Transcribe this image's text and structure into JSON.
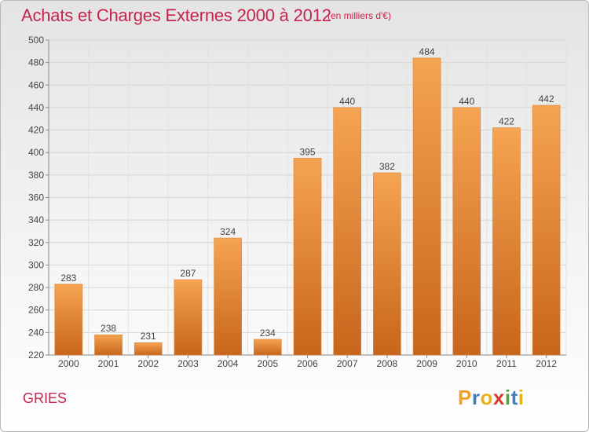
{
  "title": "Achats et Charges Externes 2000 à 2012",
  "subtitle": "(en milliers d'€)",
  "commune": "GRIES",
  "logo": {
    "letters": [
      "P",
      "r",
      "o",
      "x",
      "i",
      "t",
      "i"
    ],
    "colors": [
      "#f0a02a",
      "#3d7fbf",
      "#e8b219",
      "#d53a2c",
      "#4aa73d",
      "#3d7fbf",
      "#e8b219"
    ],
    "text": "Proxiti"
  },
  "colors": {
    "bar_top": "#f5a452",
    "bar_bottom": "#c8651b",
    "title": "#c8234f"
  },
  "chart_data": {
    "type": "bar",
    "title": "Achats et Charges Externes 2000 à 2012",
    "subtitle": "(en milliers d'€)",
    "categories": [
      "2000",
      "2001",
      "2002",
      "2003",
      "2004",
      "2005",
      "2006",
      "2007",
      "2008",
      "2009",
      "2010",
      "2011",
      "2012"
    ],
    "values": [
      283,
      238,
      231,
      287,
      324,
      234,
      395,
      440,
      382,
      484,
      440,
      422,
      442
    ],
    "ylim": [
      220,
      500
    ],
    "yticks": [
      220,
      240,
      260,
      280,
      300,
      320,
      340,
      360,
      380,
      400,
      420,
      440,
      460,
      480,
      500
    ],
    "grid": true,
    "xlabel": "",
    "ylabel": ""
  }
}
